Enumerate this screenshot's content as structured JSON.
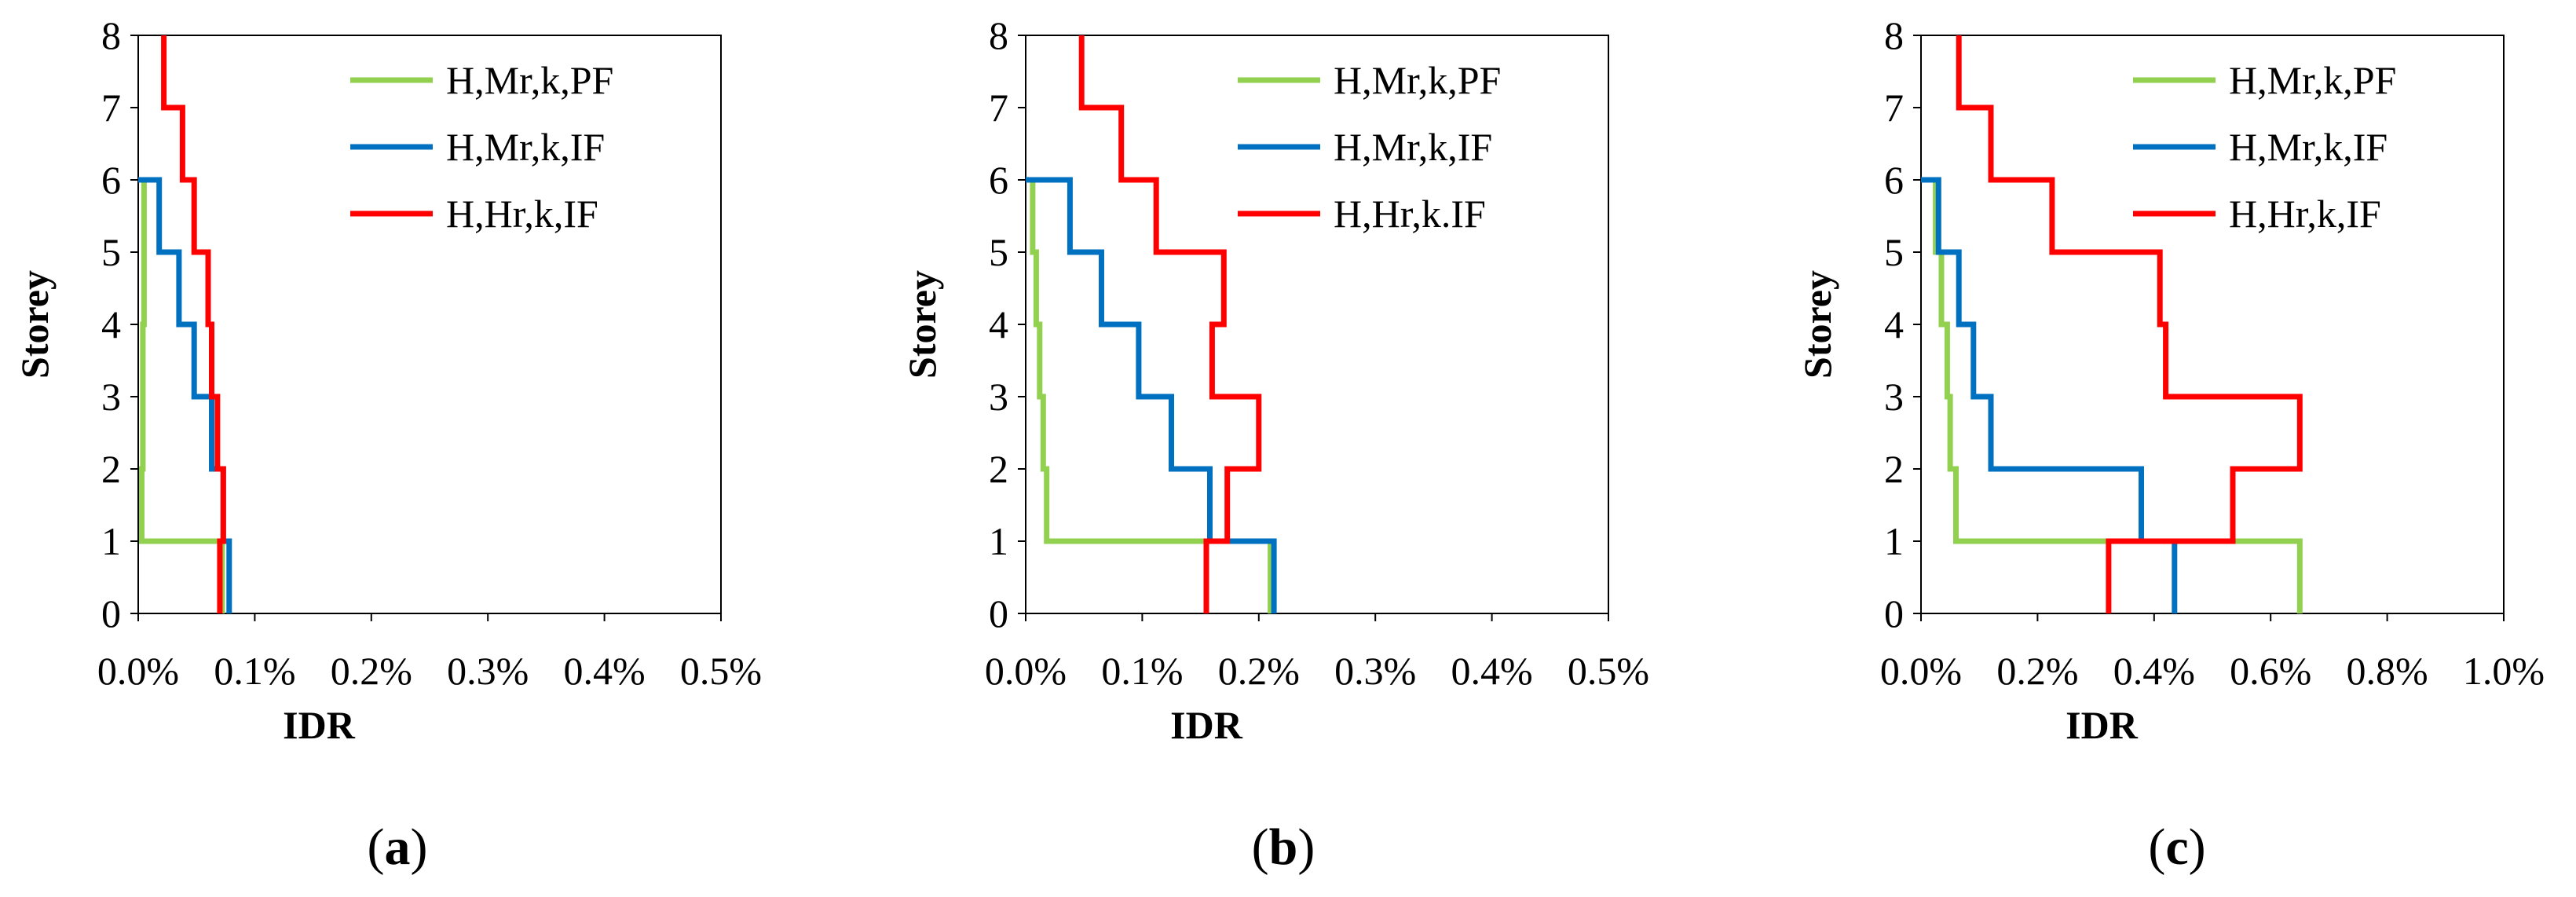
{
  "chart_data": [
    {
      "type": "line",
      "panel_label": "a",
      "xlabel": "IDR",
      "ylabel": "Storey",
      "xlim": [
        0,
        0.5
      ],
      "ylim": [
        0,
        8
      ],
      "x_ticks": [
        "0.0%",
        "0.1%",
        "0.2%",
        "0.3%",
        "0.4%",
        "0.5%"
      ],
      "y_ticks": [
        "0",
        "1",
        "2",
        "3",
        "4",
        "5",
        "6",
        "7",
        "8"
      ],
      "legend_position": "top-right",
      "series": [
        {
          "name": "H,Mr,k,PF",
          "color": "#92d050",
          "values": [
            0.072,
            0.003,
            0.004,
            0.004,
            0.005,
            0.005
          ]
        },
        {
          "name": "H,Mr,k,IF",
          "color": "#0070c0",
          "values": [
            0.078,
            0.073,
            0.063,
            0.048,
            0.035,
            0.018
          ]
        },
        {
          "name": "H,Hr,k,IF",
          "color": "#ff0000",
          "values": [
            0.07,
            0.073,
            0.068,
            0.063,
            0.06,
            0.048,
            0.038,
            0.022
          ]
        }
      ]
    },
    {
      "type": "line",
      "panel_label": "b",
      "xlabel": "IDR",
      "ylabel": "Storey",
      "xlim": [
        0,
        0.5
      ],
      "ylim": [
        0,
        8
      ],
      "x_ticks": [
        "0.0%",
        "0.1%",
        "0.2%",
        "0.3%",
        "0.4%",
        "0.5%"
      ],
      "y_ticks": [
        "0",
        "1",
        "2",
        "3",
        "4",
        "5",
        "6",
        "7",
        "8"
      ],
      "legend_position": "top-right",
      "series": [
        {
          "name": "H,Mr,k,PF",
          "color": "#92d050",
          "values": [
            0.21,
            0.018,
            0.015,
            0.012,
            0.009,
            0.006
          ]
        },
        {
          "name": "H,Mr,k,IF",
          "color": "#0070c0",
          "values": [
            0.213,
            0.158,
            0.125,
            0.097,
            0.065,
            0.038
          ]
        },
        {
          "name": "H,Hr,k.IF",
          "color": "#ff0000",
          "values": [
            0.155,
            0.173,
            0.2,
            0.16,
            0.17,
            0.112,
            0.082,
            0.048
          ]
        }
      ]
    },
    {
      "type": "line",
      "panel_label": "c",
      "xlabel": "IDR",
      "ylabel": "Storey",
      "xlim": [
        0,
        1.0
      ],
      "ylim": [
        0,
        8
      ],
      "x_ticks": [
        "0.0%",
        "0.2%",
        "0.4%",
        "0.6%",
        "0.8%",
        "1.0%"
      ],
      "y_ticks": [
        "0",
        "1",
        "2",
        "3",
        "4",
        "5",
        "6",
        "7",
        "8"
      ],
      "legend_position": "top-right",
      "series": [
        {
          "name": "H,Mr,k,PF",
          "color": "#92d050",
          "values": [
            0.65,
            0.06,
            0.05,
            0.045,
            0.035,
            0.025
          ]
        },
        {
          "name": "H,Mr,k,IF",
          "color": "#0070c0",
          "values": [
            0.435,
            0.378,
            0.12,
            0.09,
            0.065,
            0.03
          ]
        },
        {
          "name": "H,Hr,k,IF",
          "color": "#ff0000",
          "values": [
            0.322,
            0.535,
            0.65,
            0.42,
            0.41,
            0.225,
            0.12,
            0.065
          ]
        }
      ]
    }
  ]
}
